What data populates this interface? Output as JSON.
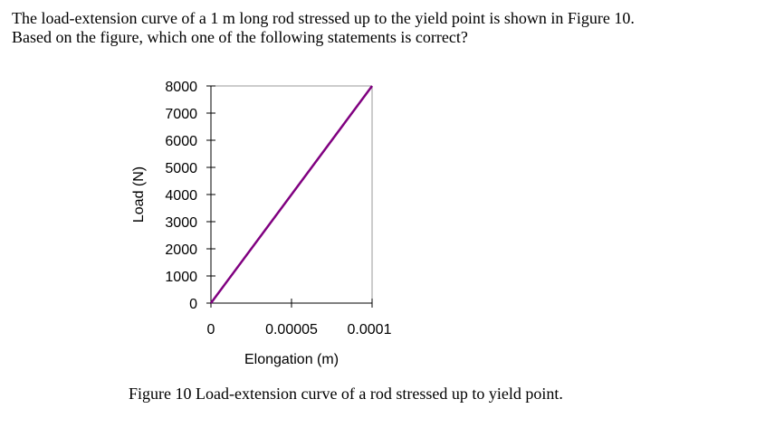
{
  "question": {
    "line1": "The load-extension curve of a 1 m long rod stressed up to the yield point is shown in Figure 10.",
    "line2": "Based on the figure, which one of the following statements is correct?"
  },
  "caption": "Figure 10 Load-extension curve of a rod stressed up to yield point.",
  "chart_data": {
    "type": "line",
    "xlabel": "Elongation (m)",
    "ylabel": "Load (N)",
    "xlim": [
      0,
      0.0001
    ],
    "ylim": [
      0,
      8000
    ],
    "xticks": [
      0,
      5e-05,
      0.0001
    ],
    "xtick_labels": [
      "0",
      "0.00005",
      "0.0001"
    ],
    "yticks": [
      0,
      1000,
      2000,
      3000,
      4000,
      5000,
      6000,
      7000,
      8000
    ],
    "ytick_labels": [
      "0",
      "1000",
      "2000",
      "3000",
      "4000",
      "5000",
      "6000",
      "7000",
      "8000"
    ],
    "grid": false,
    "series": [
      {
        "x": [
          0,
          0.0001
        ],
        "y": [
          0,
          8000
        ],
        "color": "#800080"
      }
    ]
  }
}
